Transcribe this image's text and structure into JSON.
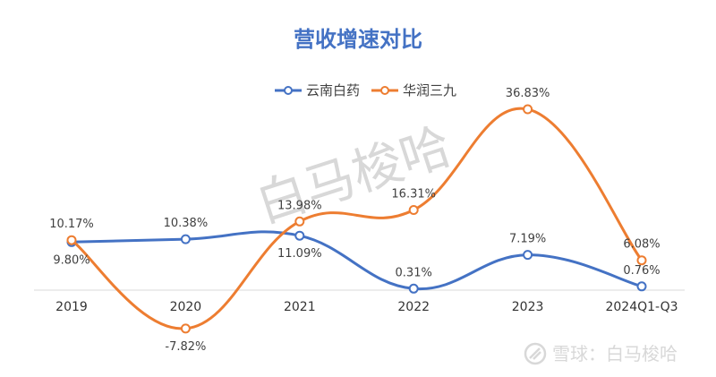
{
  "chart_data": {
    "type": "line",
    "title": "营收增速对比",
    "xlabel": "",
    "ylabel": "",
    "categories": [
      "2019",
      "2020",
      "2021",
      "2022",
      "2023",
      "2024Q1-Q3"
    ],
    "series": [
      {
        "name": "云南白药",
        "color": "#4472c4",
        "values": [
          9.8,
          10.38,
          11.09,
          0.31,
          7.19,
          0.76
        ],
        "labels": [
          "9.80%",
          "10.38%",
          "11.09%",
          "0.31%",
          "7.19%",
          "0.76%"
        ]
      },
      {
        "name": "华润三九",
        "color": "#ed7d31",
        "values": [
          10.17,
          -7.82,
          13.98,
          16.31,
          36.83,
          6.08
        ],
        "labels": [
          "10.17%",
          "-7.82%",
          "13.98%",
          "16.31%",
          "36.83%",
          "6.08%"
        ]
      }
    ],
    "ylim": [
      -8,
      38
    ],
    "grid": false,
    "legend_position": "top-center",
    "title_color": "#4472c4"
  },
  "watermark_text": "白马梭哈",
  "credit": {
    "icon": "snowball-icon",
    "text": "雪球：白马梭哈"
  }
}
